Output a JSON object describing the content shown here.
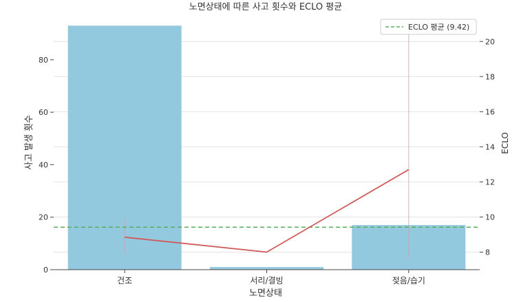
{
  "chart_data": {
    "type": "bar",
    "title": "노면상태에 따른 사고 횟수와 ECLO 평균",
    "xlabel": "노면상태",
    "ylabel": "사고 발생 횟수",
    "y2label": "ECLO",
    "categories": [
      "건조",
      "서리/결빙",
      "젖음/습기"
    ],
    "series": [
      {
        "axis": "left",
        "kind": "bar",
        "values": [
          93,
          1,
          17
        ],
        "color": "#92c9df"
      },
      {
        "axis": "right",
        "kind": "line",
        "values": [
          8.85,
          8.0,
          12.7
        ],
        "color": "#d05a5a"
      }
    ],
    "error_bars": [
      [
        7.9,
        9.9
      ],
      [
        8.0,
        8.0
      ],
      [
        7.7,
        21.0
      ]
    ],
    "reference_line": {
      "label": "ECLO 평균 (9.42)",
      "value": 9.42,
      "axis": "right",
      "color": "#5aad5a"
    },
    "ylim": [
      0,
      97
    ],
    "y2lim": [
      7.0,
      21.5
    ],
    "yticks": [
      "0",
      "20",
      "40",
      "60",
      "80"
    ],
    "y2ticks": [
      "8",
      "10",
      "12",
      "14",
      "16",
      "18",
      "20"
    ],
    "grid": true,
    "legend_position": "top-right"
  }
}
